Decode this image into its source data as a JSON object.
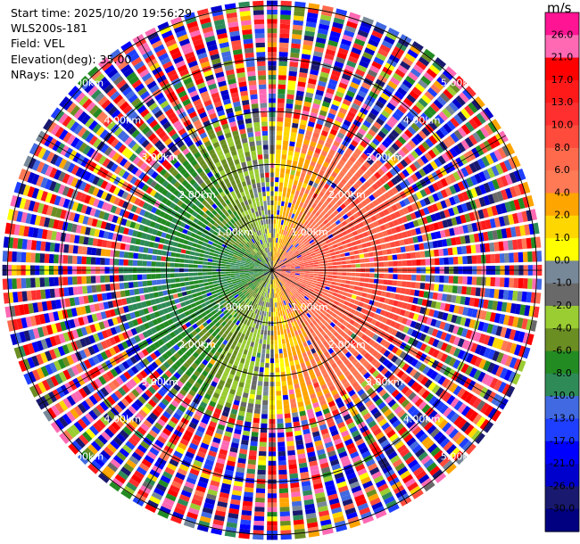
{
  "header": {
    "start_time": "Start time: 2025/10/20 19:56:29",
    "instrument": "WLS200s-181",
    "field": "Field: VEL",
    "elevation": "Elevation(deg): 35.00",
    "nrays": "NRays: 120"
  },
  "colorbar": {
    "unit": "m/s",
    "colors": [
      "#ff1493",
      "#ff69b4",
      "#ff0000",
      "#ff1a1a",
      "#ff2f2f",
      "#ff4b3c",
      "#ff6a4d",
      "#ff7a55",
      "#ffa500",
      "#ffd700",
      "#ffff00",
      "#778899",
      "#696969",
      "#9acd32",
      "#6b8e23",
      "#228b22",
      "#2e8b57",
      "#4169e1",
      "#1e3fff",
      "#0000ff",
      "#0000cd",
      "#191970",
      "#000080"
    ],
    "labels": [
      "26.0",
      "21.0",
      "17.0",
      "13.0",
      "10.0",
      "8.0",
      "6.0",
      "4.0",
      "2.0",
      "1.0",
      "0.0",
      "-1.0",
      "-2.0",
      "-4.0",
      "-6.0",
      "-8.0",
      "-10.0",
      "-13.0",
      "-17.0",
      "-21.0",
      "-26.0",
      "-30.0"
    ]
  },
  "rings": {
    "labels": [
      "1.00km",
      "2.00km",
      "3.00km",
      "4.00km",
      "5.00km"
    ]
  },
  "chart_data": {
    "type": "heatmap",
    "projection": "polar-ppi",
    "field": "VEL",
    "units": "m/s",
    "nrays": 120,
    "elevation_deg": 35.0,
    "range_rings_km": [
      1,
      2,
      3,
      4,
      5
    ],
    "max_range_km": 5.1,
    "value_range": [
      -30.0,
      26.0
    ],
    "colormap_edges": [
      26,
      21,
      17,
      13,
      10,
      8,
      6,
      4,
      2,
      1,
      0,
      -1,
      -2,
      -4,
      -6,
      -8,
      -10,
      -13,
      -17,
      -21,
      -26,
      -30
    ],
    "pattern": {
      "inner_zone_km": 2.6,
      "toward_sector": "west (negative, blue/green)",
      "away_sector": "east (positive, red/orange)",
      "zero_line": "north-south (yellow/grey)",
      "outer_zone": "noise (random colors)"
    }
  }
}
